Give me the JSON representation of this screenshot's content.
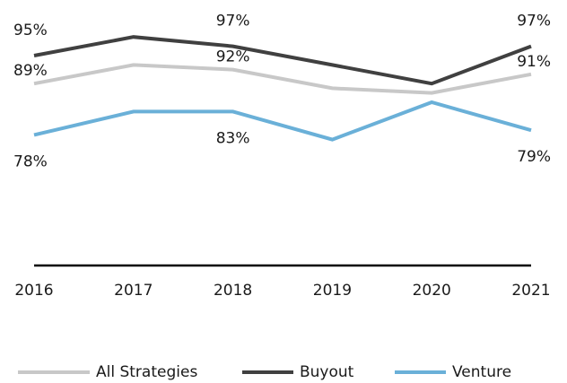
{
  "chart_data": {
    "type": "line",
    "x": [
      "2016",
      "2017",
      "2018",
      "2019",
      "2020",
      "2021"
    ],
    "ylim": [
      50,
      105
    ],
    "series": [
      {
        "name": "All Strategies",
        "color": "#c8c8c8",
        "values": [
          89,
          93,
          92,
          88,
          87,
          91
        ],
        "value_labels": [
          "89%",
          null,
          "92%",
          null,
          null,
          "91%"
        ]
      },
      {
        "name": "Buyout",
        "color": "#404040",
        "values": [
          95,
          99,
          97,
          93,
          89,
          97
        ],
        "value_labels": [
          "95%",
          null,
          "97%",
          null,
          null,
          "97%"
        ]
      },
      {
        "name": "Venture",
        "color": "#6ab0d8",
        "values": [
          78,
          83,
          83,
          77,
          85,
          79
        ],
        "value_labels": [
          "78%",
          null,
          "83%",
          null,
          null,
          "79%"
        ]
      }
    ]
  }
}
